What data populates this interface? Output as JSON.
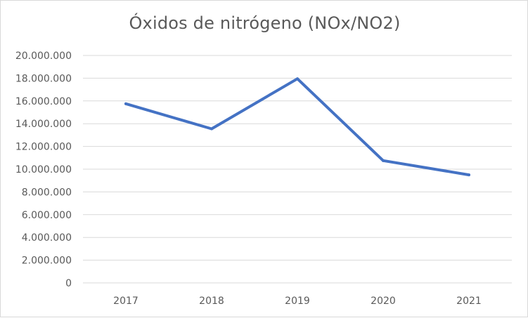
{
  "chart_data": {
    "type": "line",
    "title": "Óxidos de nitrógeno (NOx/NO2)",
    "xlabel": "",
    "ylabel": "",
    "categories": [
      "2017",
      "2018",
      "2019",
      "2020",
      "2021"
    ],
    "series": [
      {
        "values": [
          15750000,
          13550000,
          17950000,
          10750000,
          9500000
        ]
      }
    ],
    "ylim": [
      0,
      20000000
    ],
    "yticks": [
      0,
      2000000,
      4000000,
      6000000,
      8000000,
      10000000,
      12000000,
      14000000,
      16000000,
      18000000,
      20000000
    ],
    "ytick_labels": [
      "0",
      "2.000.000",
      "4.000.000",
      "6.000.000",
      "8.000.000",
      "10.000.000",
      "12.000.000",
      "14.000.000",
      "16.000.000",
      "18.000.000",
      "20.000.000"
    ],
    "grid": true,
    "legend": "none",
    "line_color": "#4472c4",
    "grid_color": "#d9d9d9",
    "text_color": "#595959"
  }
}
